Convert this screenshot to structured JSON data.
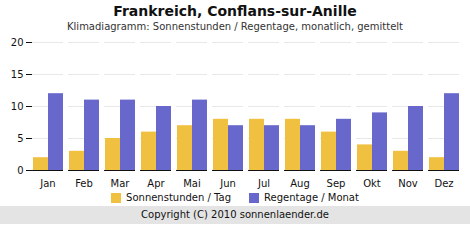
{
  "chart_data": {
    "type": "bar",
    "title": "Frankreich, Conflans-sur-Anille",
    "subtitle": "Klimadiagramm: Sonnenstunden / Regentage, monatlich, gemittelt",
    "caption": "Copyright (C) 2010 sonnenlaender.de",
    "categories": [
      "Jan",
      "Feb",
      "Mar",
      "Apr",
      "Mai",
      "Jun",
      "Jul",
      "Aug",
      "Sep",
      "Okt",
      "Nov",
      "Dez"
    ],
    "series": [
      {
        "name": "Sonnenstunden / Tag",
        "color": "#f0c040",
        "values": [
          2,
          3,
          5,
          6,
          7,
          8,
          8,
          8,
          6,
          4,
          3,
          2
        ]
      },
      {
        "name": "Regentage / Monat",
        "color": "#6868cc",
        "values": [
          12,
          11,
          11,
          10,
          11,
          7,
          7,
          7,
          8,
          9,
          10,
          12
        ]
      }
    ],
    "ylim": [
      0,
      20
    ],
    "yticks": [
      0,
      5,
      10,
      15,
      20
    ],
    "grid": true,
    "legend": "bottom"
  }
}
